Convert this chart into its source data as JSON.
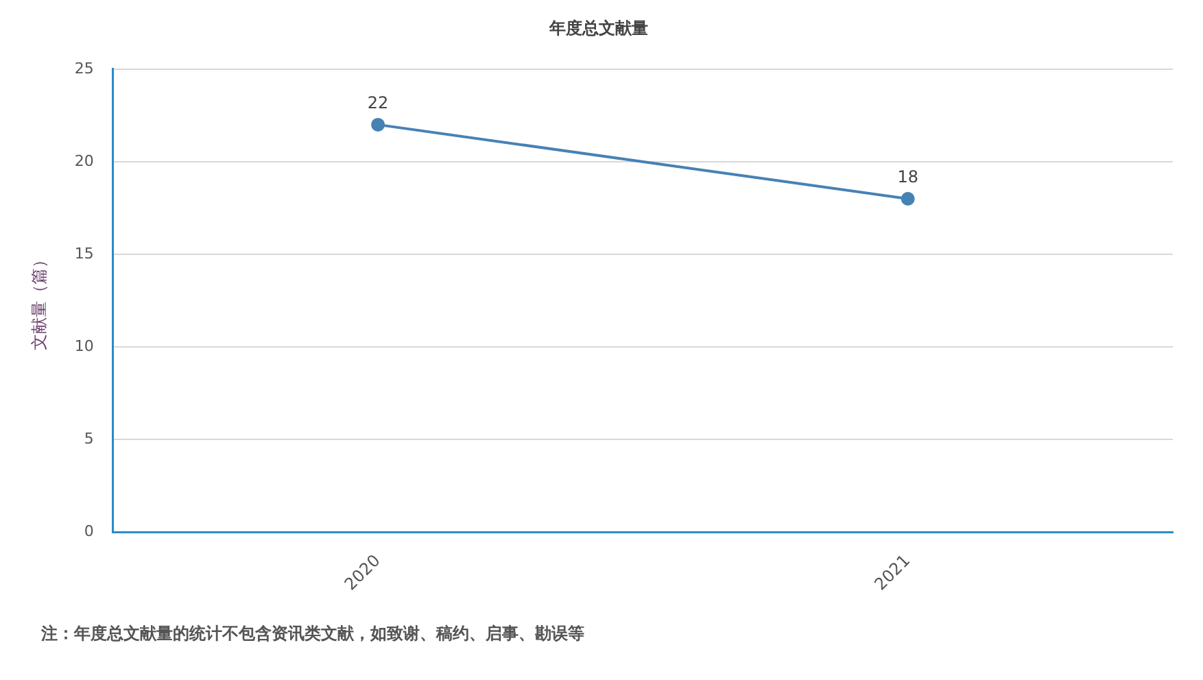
{
  "chart_data": {
    "type": "line",
    "title": "年度总文献量",
    "ylabel": "文献量（篇）",
    "categories": [
      "2020",
      "2021"
    ],
    "series": [
      {
        "color": "#4682b4",
        "values": [
          22,
          18
        ]
      }
    ],
    "ylim": [
      0,
      25
    ],
    "yticks": [
      0,
      5,
      10,
      15,
      20,
      25
    ],
    "grid": "y",
    "legend": false,
    "marker": "circle",
    "line_style": "solid",
    "data_labels": true,
    "annotations": [
      "注：年度总文献量的统计不包含资讯类文献，如致谢、稿约、启事、勘误等"
    ]
  }
}
